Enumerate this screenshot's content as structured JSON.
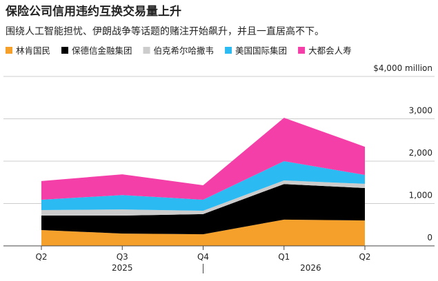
{
  "chart_data": {
    "type": "stacked-area",
    "title": "保险公司信用违约互换交易量上升",
    "subtitle": "围绕人工智能担忧、伊朗战争等话题的赌注开始飙升，并且一直居高不下。",
    "categories": [
      "Q2",
      "Q3",
      "Q4",
      "Q1",
      "Q2"
    ],
    "x_groups": [
      "2025",
      "2026"
    ],
    "series": [
      {
        "name": "林肯国民",
        "color": "#f5a02a",
        "values": [
          375,
          290,
          275,
          620,
          600
        ]
      },
      {
        "name": "保德信金融集团",
        "color": "#000000",
        "values": [
          340,
          425,
          475,
          840,
          765
        ]
      },
      {
        "name": "伯克希尔哈撒韦",
        "color": "#cccccc",
        "values": [
          130,
          145,
          80,
          85,
          100
        ]
      },
      {
        "name": "美国国际集团",
        "color": "#2bbbf2",
        "values": [
          245,
          340,
          260,
          455,
          210
        ]
      },
      {
        "name": "大都会人寿",
        "color": "#f53fa8",
        "values": [
          440,
          490,
          340,
          1025,
          665
        ]
      }
    ],
    "ylim": [
      0,
      4000
    ],
    "yticks": [
      0,
      {
        "value": 1000,
        "label": "1,000"
      },
      {
        "value": 2000,
        "label": "2,000"
      },
      {
        "value": 3000,
        "label": "3,000"
      },
      {
        "value": 4000,
        "label": "$4,000 million"
      }
    ],
    "grid": true
  }
}
